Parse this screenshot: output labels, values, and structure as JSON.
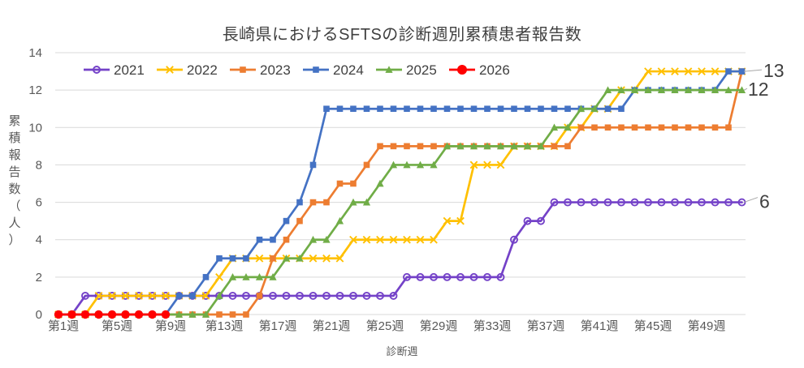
{
  "title": "長崎県におけるSFTSの診断週別累積患者報告数",
  "axes": {
    "y_title": "累積報告数（人）",
    "x_title": "診断週",
    "y_ticks": [
      0,
      2,
      4,
      6,
      8,
      10,
      12,
      14
    ],
    "x_ticks": [
      {
        "week": 1,
        "label": "第1週"
      },
      {
        "week": 5,
        "label": "第5週"
      },
      {
        "week": 9,
        "label": "第9週"
      },
      {
        "week": 13,
        "label": "第13週"
      },
      {
        "week": 17,
        "label": "第17週"
      },
      {
        "week": 21,
        "label": "第21週"
      },
      {
        "week": 25,
        "label": "第25週"
      },
      {
        "week": 29,
        "label": "第29週"
      },
      {
        "week": 33,
        "label": "第33週"
      },
      {
        "week": 37,
        "label": "第37週"
      },
      {
        "week": 41,
        "label": "第41週"
      },
      {
        "week": 45,
        "label": "第45週"
      },
      {
        "week": 49,
        "label": "第49週"
      }
    ]
  },
  "colors": {
    "grid": "#d9d9d9",
    "axis_text": "#595959",
    "title_text": "#3f3f3f",
    "legend_text": "#404040",
    "end_label_text": "#404040",
    "leader_line": "#a6a6a6"
  },
  "chart_data": {
    "type": "line",
    "x_unit": "diagnosis week 1-52",
    "ylim": [
      0,
      14
    ],
    "grid": "horizontal",
    "legend_position": "top-left-inside",
    "series": [
      {
        "name": "2021",
        "color": "#7442c8",
        "marker": "circle-open",
        "values": [
          0,
          0,
          1,
          1,
          1,
          1,
          1,
          1,
          1,
          1,
          1,
          1,
          1,
          1,
          1,
          1,
          1,
          1,
          1,
          1,
          1,
          1,
          1,
          1,
          1,
          1,
          2,
          2,
          2,
          2,
          2,
          2,
          2,
          2,
          4,
          5,
          5,
          6,
          6,
          6,
          6,
          6,
          6,
          6,
          6,
          6,
          6,
          6,
          6,
          6,
          6,
          6
        ]
      },
      {
        "name": "2022",
        "color": "#ffc000",
        "marker": "x",
        "values": [
          0,
          0,
          0,
          1,
          1,
          1,
          1,
          1,
          1,
          1,
          1,
          1,
          2,
          3,
          3,
          3,
          3,
          3,
          3,
          3,
          3,
          3,
          4,
          4,
          4,
          4,
          4,
          4,
          4,
          5,
          5,
          8,
          8,
          8,
          9,
          9,
          9,
          9,
          10,
          10,
          11,
          11,
          12,
          12,
          13,
          13,
          13,
          13,
          13,
          13,
          13,
          13
        ]
      },
      {
        "name": "2023",
        "color": "#ed7d31",
        "marker": "square",
        "values": [
          0,
          0,
          0,
          0,
          0,
          0,
          0,
          0,
          0,
          0,
          0,
          0,
          0,
          0,
          0,
          1,
          3,
          4,
          5,
          6,
          6,
          7,
          7,
          8,
          9,
          9,
          9,
          9,
          9,
          9,
          9,
          9,
          9,
          9,
          9,
          9,
          9,
          9,
          9,
          10,
          10,
          10,
          10,
          10,
          10,
          10,
          10,
          10,
          10,
          10,
          10,
          13
        ]
      },
      {
        "name": "2024",
        "color": "#4472c4",
        "marker": "square",
        "values": [
          0,
          0,
          0,
          0,
          0,
          0,
          0,
          0,
          0,
          1,
          1,
          2,
          3,
          3,
          3,
          4,
          4,
          5,
          6,
          8,
          11,
          11,
          11,
          11,
          11,
          11,
          11,
          11,
          11,
          11,
          11,
          11,
          11,
          11,
          11,
          11,
          11,
          11,
          11,
          11,
          11,
          11,
          11,
          12,
          12,
          12,
          12,
          12,
          12,
          12,
          13,
          13
        ]
      },
      {
        "name": "2025",
        "color": "#70ad47",
        "marker": "triangle",
        "values": [
          0,
          0,
          0,
          0,
          0,
          0,
          0,
          0,
          0,
          0,
          0,
          0,
          1,
          2,
          2,
          2,
          2,
          3,
          3,
          4,
          4,
          5,
          6,
          6,
          7,
          8,
          8,
          8,
          8,
          9,
          9,
          9,
          9,
          9,
          9,
          9,
          9,
          10,
          10,
          11,
          11,
          12,
          12,
          12,
          12,
          12,
          12,
          12,
          12,
          12,
          12,
          12
        ]
      },
      {
        "name": "2026",
        "color": "#ff0000",
        "marker": "circle",
        "values": [
          0,
          0,
          0,
          0,
          0,
          0,
          0,
          0,
          0
        ]
      }
    ],
    "end_labels": [
      {
        "text": "13",
        "value": 13
      },
      {
        "text": "12",
        "value": 12
      },
      {
        "text": "6",
        "value": 6
      }
    ]
  }
}
